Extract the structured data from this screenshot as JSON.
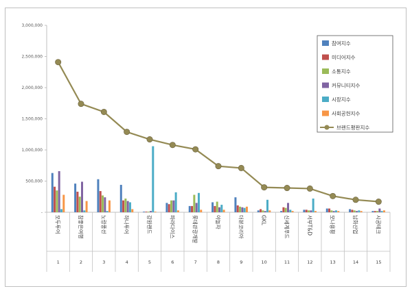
{
  "chart_data": {
    "type": "bar",
    "ylim": [
      0,
      3000000
    ],
    "yticks": [
      "-",
      "500,000",
      "1,000,000",
      "1,500,000",
      "2,000,000",
      "2,500,000",
      "3,000,000"
    ],
    "categories": [
      "모두투어",
      "참좋은여행",
      "노랑풍선",
      "하나투어",
      "강원랜드",
      "파라다이스",
      "롯데관광개발",
      "야놀자",
      "더본코리아",
      "GKL",
      "신세계푸드",
      "서부T&D",
      "모나용평",
      "남화산업",
      "시공테크"
    ],
    "category_numbers": [
      "1",
      "2",
      "3",
      "4",
      "5",
      "6",
      "7",
      "8",
      "9",
      "10",
      "11",
      "12",
      "13",
      "14",
      "15"
    ],
    "series": [
      {
        "name": "참여지수",
        "color": "#4f81bd",
        "values": [
          630000,
          460000,
          530000,
          440000,
          10000,
          150000,
          100000,
          160000,
          240000,
          30000,
          20000,
          40000,
          60000,
          50000,
          20000
        ]
      },
      {
        "name": "미디어지수",
        "color": "#c0504d",
        "values": [
          410000,
          330000,
          340000,
          190000,
          10000,
          130000,
          100000,
          100000,
          110000,
          50000,
          80000,
          40000,
          60000,
          40000,
          20000
        ]
      },
      {
        "name": "소통지수",
        "color": "#9bbb59",
        "values": [
          350000,
          250000,
          270000,
          220000,
          10000,
          190000,
          280000,
          170000,
          90000,
          30000,
          70000,
          30000,
          30000,
          30000,
          20000
        ]
      },
      {
        "name": "커뮤니티지수",
        "color": "#8064a2",
        "values": [
          660000,
          490000,
          240000,
          180000,
          20000,
          190000,
          150000,
          80000,
          80000,
          20000,
          150000,
          30000,
          20000,
          20000,
          60000
        ]
      },
      {
        "name": "시장지수",
        "color": "#4bacc6",
        "values": [
          50000,
          30000,
          20000,
          160000,
          1060000,
          320000,
          310000,
          120000,
          70000,
          200000,
          40000,
          220000,
          30000,
          30000,
          20000
        ]
      },
      {
        "name": "사회공헌지수",
        "color": "#f79646",
        "values": [
          280000,
          180000,
          190000,
          50000,
          10000,
          30000,
          40000,
          40000,
          90000,
          30000,
          20000,
          20000,
          20000,
          20000,
          30000
        ]
      }
    ],
    "line": {
      "name": "브랜드평판지수",
      "color": "#948a54",
      "values": [
        2410000,
        1740000,
        1610000,
        1290000,
        1170000,
        1080000,
        1010000,
        740000,
        710000,
        400000,
        390000,
        380000,
        260000,
        200000,
        170000
      ]
    },
    "legend_position": "top-right",
    "grid": false
  }
}
